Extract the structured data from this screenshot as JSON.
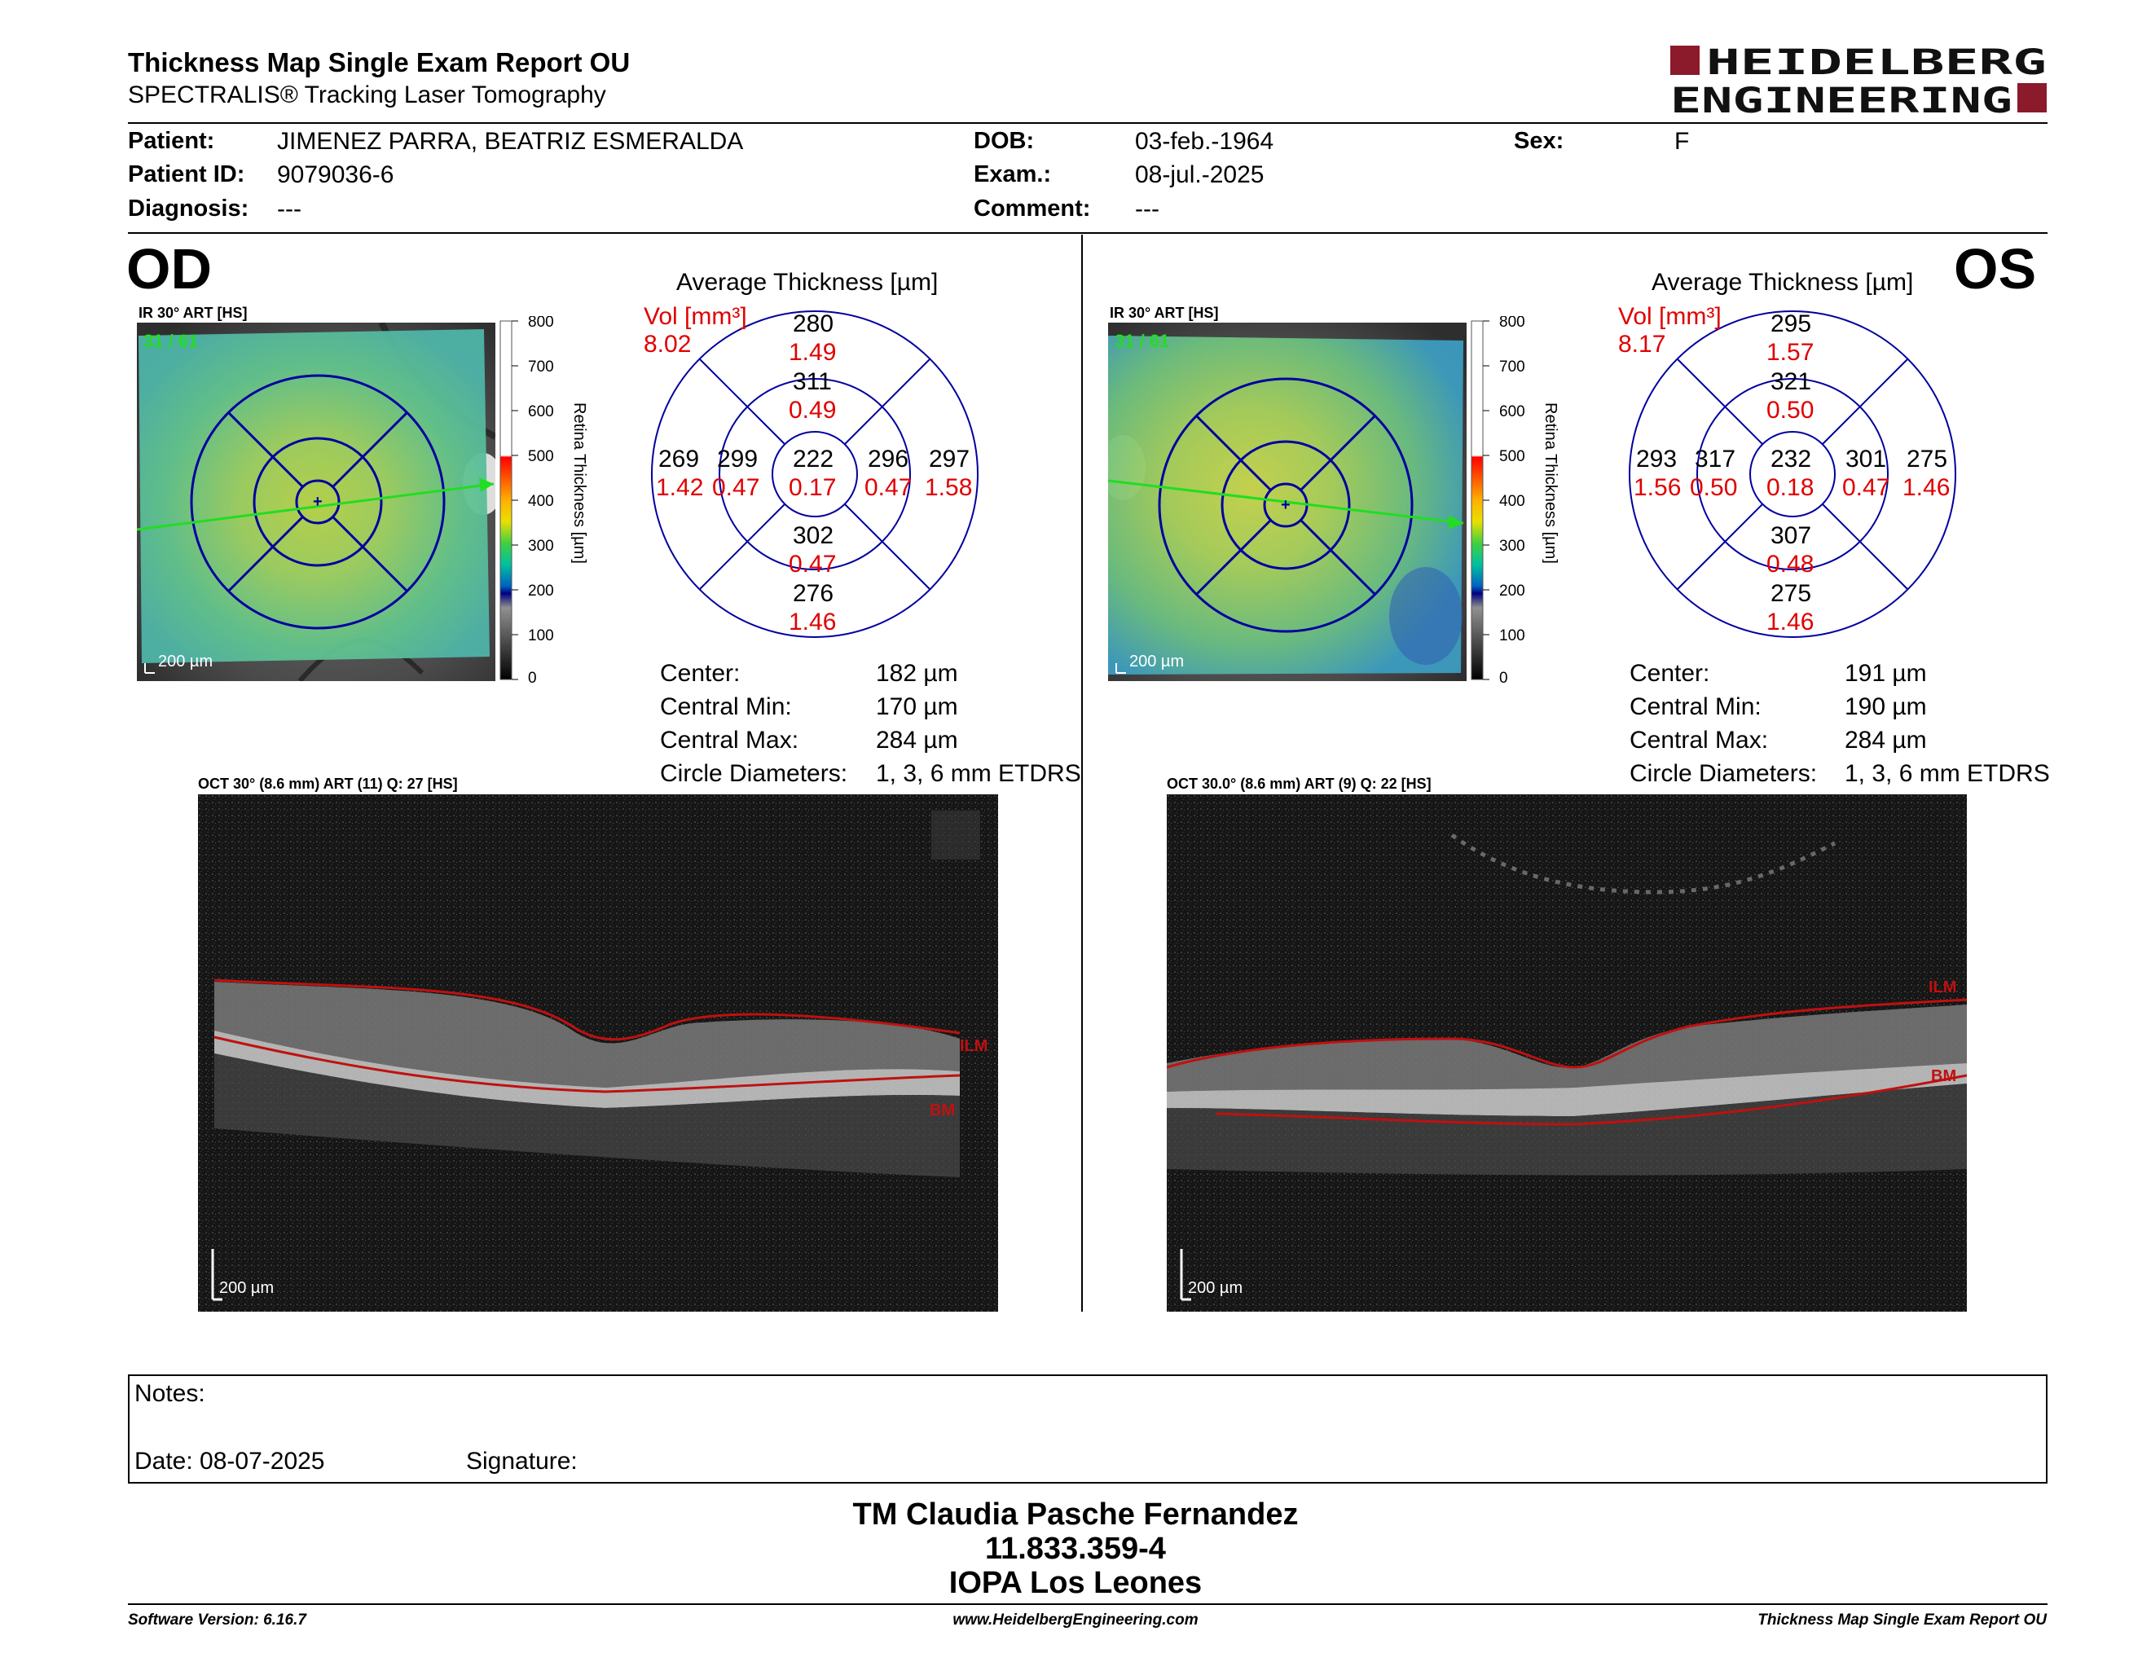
{
  "header": {
    "title": "Thickness Map Single Exam Report OU",
    "subtitle": "SPECTRALIS® Tracking Laser Tomography",
    "logo_line1": "HEIDELBERG",
    "logo_line2": "ENGINEERING",
    "brand_color": "#8b1a2b"
  },
  "patient": {
    "patient_label": "Patient:",
    "patient_value": "JIMENEZ PARRA, BEATRIZ ESMERALDA",
    "id_label": "Patient ID:",
    "id_value": "9079036-6",
    "diagnosis_label": "Diagnosis:",
    "diagnosis_value": "---",
    "dob_label": "DOB:",
    "dob_value": "03-feb.-1964",
    "exam_label": "Exam.:",
    "exam_value": "08-jul.-2025",
    "comment_label": "Comment:",
    "comment_value": "---",
    "sex_label": "Sex:",
    "sex_value": "F"
  },
  "od": {
    "eye": "OD",
    "ir_title": "IR 30° ART [HS]",
    "ir_counter": "31 / 61",
    "ir_scale": "200 µm",
    "colorbar_ticks": [
      "800",
      "700",
      "600",
      "500",
      "400",
      "300",
      "200",
      "100",
      "0"
    ],
    "colorbar_label": "Retina  Thickness [µm]",
    "avg_title": "Average Thickness [µm]",
    "vol_label": "Vol [mm³]",
    "vol_value": "8.02",
    "sectors": {
      "outer_sup": {
        "t": "280",
        "v": "1.49"
      },
      "inner_sup": {
        "t": "311",
        "v": "0.49"
      },
      "center": {
        "t": "222",
        "v": "0.17"
      },
      "inner_left": {
        "t": "299",
        "v": "0.47"
      },
      "inner_right": {
        "t": "296",
        "v": "0.47"
      },
      "outer_left": {
        "t": "269",
        "v": "1.42"
      },
      "outer_right": {
        "t": "297",
        "v": "1.58"
      },
      "inner_inf": {
        "t": "302",
        "v": "0.47"
      },
      "outer_inf": {
        "t": "276",
        "v": "1.46"
      }
    },
    "stats": {
      "center_label": "Center:",
      "center_value": "182 µm",
      "min_label": "Central Min:",
      "min_value": "170 µm",
      "max_label": "Central Max:",
      "max_value": "284 µm",
      "diam_label": "Circle Diameters:",
      "diam_value": "1, 3, 6 mm ETDRS"
    },
    "oct_title": "OCT 30° (8.6 mm) ART (11) Q: 27 [HS]",
    "oct_scale": "200 µm",
    "ilm_label": "ILM",
    "bm_label": "BM"
  },
  "os": {
    "eye": "OS",
    "ir_title": "IR 30° ART [HS]",
    "ir_counter": "31 / 61",
    "ir_scale": "200 µm",
    "colorbar_ticks": [
      "800",
      "700",
      "600",
      "500",
      "400",
      "300",
      "200",
      "100",
      "0"
    ],
    "colorbar_label": "Retina  Thickness [µm]",
    "avg_title": "Average Thickness [µm]",
    "vol_label": "Vol [mm³]",
    "vol_value": "8.17",
    "sectors": {
      "outer_sup": {
        "t": "295",
        "v": "1.57"
      },
      "inner_sup": {
        "t": "321",
        "v": "0.50"
      },
      "center": {
        "t": "232",
        "v": "0.18"
      },
      "inner_left": {
        "t": "317",
        "v": "0.50"
      },
      "inner_right": {
        "t": "301",
        "v": "0.47"
      },
      "outer_left": {
        "t": "293",
        "v": "1.56"
      },
      "outer_right": {
        "t": "275",
        "v": "1.46"
      },
      "inner_inf": {
        "t": "307",
        "v": "0.48"
      },
      "outer_inf": {
        "t": "275",
        "v": "1.46"
      }
    },
    "stats": {
      "center_label": "Center:",
      "center_value": "191 µm",
      "min_label": "Central Min:",
      "min_value": "190 µm",
      "max_label": "Central Max:",
      "max_value": "284 µm",
      "diam_label": "Circle Diameters:",
      "diam_value": "1, 3, 6 mm ETDRS"
    },
    "oct_title": "OCT 30.0° (8.6 mm) ART (9) Q: 22 [HS]",
    "oct_scale": "200 µm",
    "ilm_label": "ILM",
    "bm_label": "BM"
  },
  "notes": {
    "notes_label": "Notes:",
    "date_label": "Date: 08-07-2025",
    "signature_label": "Signature:"
  },
  "signature_block": {
    "line1": "TM Claudia Pasche Fernandez",
    "line2": "11.833.359-4",
    "line3": "IOPA Los Leones"
  },
  "footer": {
    "software": "Software Version: 6.16.7",
    "website": "www.HeidelbergEngineering.com",
    "report": "Thickness Map Single Exam Report OU"
  },
  "colors": {
    "value_red": "#e00000",
    "grid_blue": "#0000a0",
    "scan_line_green": "#22dd22",
    "segment_red": "#c01010"
  }
}
